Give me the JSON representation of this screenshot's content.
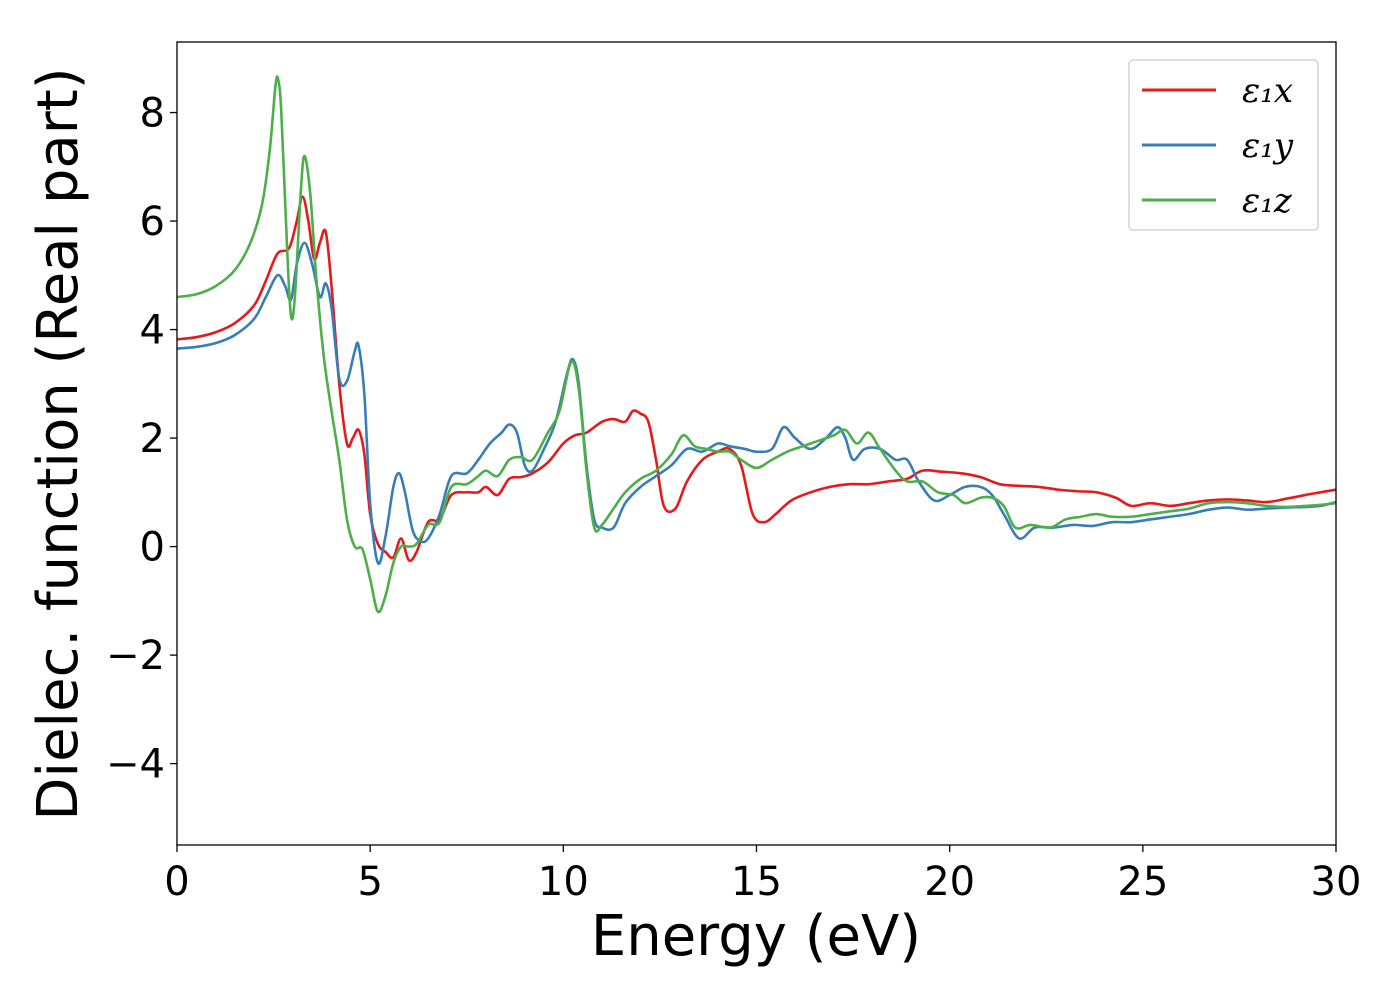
{
  "chart_data": {
    "type": "line",
    "xlabel": "Energy (eV)",
    "ylabel": "Dielec. function (Real part)",
    "xlim": [
      0,
      30
    ],
    "ylim": [
      -5.5,
      9.3
    ],
    "xticks": [
      0,
      5,
      10,
      15,
      20,
      25,
      30
    ],
    "xtick_labels": [
      "0",
      "5",
      "10",
      "15",
      "20",
      "25",
      "30"
    ],
    "yticks": [
      -4,
      -2,
      0,
      2,
      4,
      6,
      8
    ],
    "ytick_labels": [
      "−4",
      "−2",
      "0",
      "2",
      "4",
      "6",
      "8"
    ],
    "grid": false,
    "legend_position": "upper right",
    "series": [
      {
        "name": "ε₁x",
        "color": "#e41a1c",
        "points": [
          [
            0,
            3.82
          ],
          [
            0.5,
            3.86
          ],
          [
            1,
            3.95
          ],
          [
            1.5,
            4.12
          ],
          [
            2,
            4.45
          ],
          [
            2.3,
            4.9
          ],
          [
            2.6,
            5.4
          ],
          [
            2.9,
            5.5
          ],
          [
            3.1,
            6.0
          ],
          [
            3.25,
            6.45
          ],
          [
            3.4,
            6.0
          ],
          [
            3.55,
            5.3
          ],
          [
            3.7,
            5.6
          ],
          [
            3.85,
            5.8
          ],
          [
            4.0,
            4.8
          ],
          [
            4.2,
            3.0
          ],
          [
            4.4,
            1.9
          ],
          [
            4.55,
            2.0
          ],
          [
            4.7,
            2.15
          ],
          [
            4.85,
            1.7
          ],
          [
            5.0,
            0.6
          ],
          [
            5.2,
            0.05
          ],
          [
            5.4,
            -0.1
          ],
          [
            5.6,
            -0.2
          ],
          [
            5.8,
            0.15
          ],
          [
            6.0,
            -0.25
          ],
          [
            6.2,
            -0.1
          ],
          [
            6.5,
            0.45
          ],
          [
            6.8,
            0.5
          ],
          [
            7.1,
            0.95
          ],
          [
            7.5,
            1.0
          ],
          [
            7.8,
            1.0
          ],
          [
            8.0,
            1.1
          ],
          [
            8.3,
            0.95
          ],
          [
            8.6,
            1.25
          ],
          [
            8.9,
            1.28
          ],
          [
            9.2,
            1.35
          ],
          [
            9.6,
            1.55
          ],
          [
            10.0,
            1.9
          ],
          [
            10.3,
            2.05
          ],
          [
            10.6,
            2.1
          ],
          [
            11.0,
            2.3
          ],
          [
            11.3,
            2.35
          ],
          [
            11.6,
            2.3
          ],
          [
            11.8,
            2.5
          ],
          [
            12.0,
            2.45
          ],
          [
            12.2,
            2.3
          ],
          [
            12.4,
            1.6
          ],
          [
            12.6,
            0.75
          ],
          [
            12.9,
            0.7
          ],
          [
            13.2,
            1.2
          ],
          [
            13.6,
            1.6
          ],
          [
            14.0,
            1.75
          ],
          [
            14.3,
            1.8
          ],
          [
            14.6,
            1.5
          ],
          [
            14.9,
            0.6
          ],
          [
            15.2,
            0.45
          ],
          [
            15.5,
            0.6
          ],
          [
            15.9,
            0.85
          ],
          [
            16.4,
            1.0
          ],
          [
            16.9,
            1.1
          ],
          [
            17.4,
            1.15
          ],
          [
            17.9,
            1.15
          ],
          [
            18.4,
            1.2
          ],
          [
            18.9,
            1.25
          ],
          [
            19.3,
            1.4
          ],
          [
            19.8,
            1.38
          ],
          [
            20.3,
            1.35
          ],
          [
            20.8,
            1.28
          ],
          [
            21.3,
            1.15
          ],
          [
            21.8,
            1.12
          ],
          [
            22.3,
            1.1
          ],
          [
            22.8,
            1.05
          ],
          [
            23.3,
            1.02
          ],
          [
            23.8,
            1.0
          ],
          [
            24.3,
            0.9
          ],
          [
            24.7,
            0.75
          ],
          [
            25.2,
            0.8
          ],
          [
            25.7,
            0.75
          ],
          [
            26.2,
            0.8
          ],
          [
            26.7,
            0.85
          ],
          [
            27.2,
            0.87
          ],
          [
            27.7,
            0.85
          ],
          [
            28.2,
            0.82
          ],
          [
            28.7,
            0.88
          ],
          [
            29.2,
            0.95
          ],
          [
            29.6,
            1.0
          ],
          [
            30.0,
            1.05
          ]
        ]
      },
      {
        "name": "ε₁y",
        "color": "#377eb8",
        "points": [
          [
            0,
            3.65
          ],
          [
            0.5,
            3.68
          ],
          [
            1,
            3.75
          ],
          [
            1.5,
            3.9
          ],
          [
            2,
            4.2
          ],
          [
            2.3,
            4.6
          ],
          [
            2.6,
            5.0
          ],
          [
            2.8,
            4.8
          ],
          [
            2.95,
            4.55
          ],
          [
            3.1,
            5.2
          ],
          [
            3.3,
            5.6
          ],
          [
            3.5,
            5.2
          ],
          [
            3.7,
            4.6
          ],
          [
            3.85,
            4.85
          ],
          [
            4.0,
            4.4
          ],
          [
            4.2,
            3.1
          ],
          [
            4.4,
            3.05
          ],
          [
            4.6,
            3.6
          ],
          [
            4.7,
            3.7
          ],
          [
            4.85,
            2.8
          ],
          [
            5.0,
            0.8
          ],
          [
            5.2,
            -0.3
          ],
          [
            5.4,
            0.2
          ],
          [
            5.6,
            1.1
          ],
          [
            5.75,
            1.35
          ],
          [
            5.9,
            1.0
          ],
          [
            6.1,
            0.3
          ],
          [
            6.3,
            0.1
          ],
          [
            6.5,
            0.15
          ],
          [
            6.8,
            0.6
          ],
          [
            7.1,
            1.3
          ],
          [
            7.5,
            1.35
          ],
          [
            7.8,
            1.6
          ],
          [
            8.1,
            1.9
          ],
          [
            8.4,
            2.1
          ],
          [
            8.6,
            2.25
          ],
          [
            8.8,
            2.1
          ],
          [
            9.0,
            1.5
          ],
          [
            9.2,
            1.4
          ],
          [
            9.5,
            1.8
          ],
          [
            9.8,
            2.3
          ],
          [
            10.1,
            3.2
          ],
          [
            10.25,
            3.45
          ],
          [
            10.4,
            3.0
          ],
          [
            10.6,
            1.5
          ],
          [
            10.8,
            0.5
          ],
          [
            11.0,
            0.35
          ],
          [
            11.3,
            0.35
          ],
          [
            11.6,
            0.8
          ],
          [
            12.0,
            1.1
          ],
          [
            12.4,
            1.3
          ],
          [
            12.8,
            1.5
          ],
          [
            13.2,
            1.8
          ],
          [
            13.6,
            1.75
          ],
          [
            14.0,
            1.9
          ],
          [
            14.3,
            1.85
          ],
          [
            14.7,
            1.8
          ],
          [
            15.0,
            1.75
          ],
          [
            15.4,
            1.8
          ],
          [
            15.7,
            2.2
          ],
          [
            16.0,
            2.0
          ],
          [
            16.4,
            1.8
          ],
          [
            16.8,
            2.0
          ],
          [
            17.1,
            2.2
          ],
          [
            17.3,
            2.0
          ],
          [
            17.5,
            1.6
          ],
          [
            17.8,
            1.8
          ],
          [
            18.2,
            1.8
          ],
          [
            18.6,
            1.6
          ],
          [
            18.9,
            1.6
          ],
          [
            19.2,
            1.2
          ],
          [
            19.6,
            0.85
          ],
          [
            20.0,
            0.95
          ],
          [
            20.4,
            1.1
          ],
          [
            20.8,
            1.1
          ],
          [
            21.1,
            0.95
          ],
          [
            21.4,
            0.6
          ],
          [
            21.8,
            0.15
          ],
          [
            22.2,
            0.35
          ],
          [
            22.7,
            0.35
          ],
          [
            23.2,
            0.4
          ],
          [
            23.7,
            0.38
          ],
          [
            24.2,
            0.45
          ],
          [
            24.7,
            0.45
          ],
          [
            25.2,
            0.5
          ],
          [
            25.7,
            0.55
          ],
          [
            26.2,
            0.6
          ],
          [
            26.7,
            0.68
          ],
          [
            27.2,
            0.72
          ],
          [
            27.7,
            0.68
          ],
          [
            28.2,
            0.7
          ],
          [
            28.7,
            0.72
          ],
          [
            29.2,
            0.73
          ],
          [
            29.6,
            0.75
          ],
          [
            30.0,
            0.82
          ]
        ]
      },
      {
        "name": "ε₁z",
        "color": "#4daf4a",
        "points": [
          [
            0,
            4.6
          ],
          [
            0.5,
            4.65
          ],
          [
            1,
            4.8
          ],
          [
            1.5,
            5.1
          ],
          [
            1.9,
            5.6
          ],
          [
            2.2,
            6.3
          ],
          [
            2.4,
            7.3
          ],
          [
            2.55,
            8.5
          ],
          [
            2.62,
            8.6
          ],
          [
            2.7,
            8.0
          ],
          [
            2.85,
            5.5
          ],
          [
            2.95,
            4.25
          ],
          [
            3.05,
            4.6
          ],
          [
            3.2,
            6.5
          ],
          [
            3.3,
            7.2
          ],
          [
            3.45,
            6.5
          ],
          [
            3.6,
            5.0
          ],
          [
            3.8,
            3.5
          ],
          [
            4.0,
            2.5
          ],
          [
            4.2,
            1.6
          ],
          [
            4.4,
            0.5
          ],
          [
            4.6,
            0.0
          ],
          [
            4.8,
            -0.05
          ],
          [
            5.0,
            -0.6
          ],
          [
            5.2,
            -1.2
          ],
          [
            5.4,
            -0.9
          ],
          [
            5.6,
            -0.3
          ],
          [
            5.8,
            0.0
          ],
          [
            6.0,
            0.0
          ],
          [
            6.2,
            0.05
          ],
          [
            6.5,
            0.4
          ],
          [
            6.8,
            0.45
          ],
          [
            7.1,
            1.1
          ],
          [
            7.5,
            1.15
          ],
          [
            7.8,
            1.3
          ],
          [
            8.0,
            1.4
          ],
          [
            8.3,
            1.3
          ],
          [
            8.6,
            1.6
          ],
          [
            8.9,
            1.65
          ],
          [
            9.2,
            1.6
          ],
          [
            9.6,
            2.1
          ],
          [
            9.9,
            2.5
          ],
          [
            10.2,
            3.4
          ],
          [
            10.4,
            2.9
          ],
          [
            10.6,
            1.4
          ],
          [
            10.8,
            0.35
          ],
          [
            11.0,
            0.4
          ],
          [
            11.3,
            0.7
          ],
          [
            11.6,
            1.0
          ],
          [
            12.0,
            1.25
          ],
          [
            12.4,
            1.4
          ],
          [
            12.8,
            1.7
          ],
          [
            13.1,
            2.05
          ],
          [
            13.4,
            1.85
          ],
          [
            13.7,
            1.8
          ],
          [
            14.0,
            1.75
          ],
          [
            14.3,
            1.75
          ],
          [
            14.6,
            1.6
          ],
          [
            15.0,
            1.45
          ],
          [
            15.4,
            1.6
          ],
          [
            15.8,
            1.75
          ],
          [
            16.2,
            1.85
          ],
          [
            16.6,
            1.95
          ],
          [
            17.0,
            2.05
          ],
          [
            17.3,
            2.15
          ],
          [
            17.6,
            1.9
          ],
          [
            17.9,
            2.1
          ],
          [
            18.2,
            1.8
          ],
          [
            18.6,
            1.4
          ],
          [
            18.9,
            1.2
          ],
          [
            19.3,
            1.2
          ],
          [
            19.7,
            1.0
          ],
          [
            20.1,
            0.95
          ],
          [
            20.4,
            0.8
          ],
          [
            20.8,
            0.9
          ],
          [
            21.1,
            0.9
          ],
          [
            21.4,
            0.75
          ],
          [
            21.7,
            0.35
          ],
          [
            22.1,
            0.4
          ],
          [
            22.6,
            0.35
          ],
          [
            23.0,
            0.5
          ],
          [
            23.4,
            0.55
          ],
          [
            23.8,
            0.6
          ],
          [
            24.2,
            0.55
          ],
          [
            24.7,
            0.55
          ],
          [
            25.2,
            0.6
          ],
          [
            25.7,
            0.65
          ],
          [
            26.2,
            0.7
          ],
          [
            26.7,
            0.8
          ],
          [
            27.2,
            0.82
          ],
          [
            27.7,
            0.8
          ],
          [
            28.2,
            0.75
          ],
          [
            28.7,
            0.73
          ],
          [
            29.2,
            0.75
          ],
          [
            29.6,
            0.77
          ],
          [
            30.0,
            0.8
          ]
        ]
      }
    ]
  }
}
